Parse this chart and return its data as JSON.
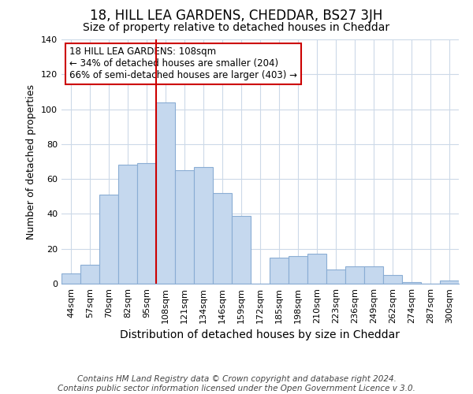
{
  "title": "18, HILL LEA GARDENS, CHEDDAR, BS27 3JH",
  "subtitle": "Size of property relative to detached houses in Cheddar",
  "xlabel": "Distribution of detached houses by size in Cheddar",
  "ylabel": "Number of detached properties",
  "bar_labels": [
    "44sqm",
    "57sqm",
    "70sqm",
    "82sqm",
    "95sqm",
    "108sqm",
    "121sqm",
    "134sqm",
    "146sqm",
    "159sqm",
    "172sqm",
    "185sqm",
    "198sqm",
    "210sqm",
    "223sqm",
    "236sqm",
    "249sqm",
    "262sqm",
    "274sqm",
    "287sqm",
    "300sqm"
  ],
  "bar_values": [
    6,
    11,
    51,
    68,
    69,
    104,
    65,
    67,
    52,
    39,
    0,
    15,
    16,
    17,
    8,
    10,
    10,
    5,
    1,
    0,
    2
  ],
  "bar_color": "#c5d8ee",
  "bar_edge_color": "#8aadd4",
  "highlight_index": 5,
  "highlight_line_color": "#cc0000",
  "ylim": [
    0,
    140
  ],
  "yticks": [
    0,
    20,
    40,
    60,
    80,
    100,
    120,
    140
  ],
  "annotation_title": "18 HILL LEA GARDENS: 108sqm",
  "annotation_line1": "← 34% of detached houses are smaller (204)",
  "annotation_line2": "66% of semi-detached houses are larger (403) →",
  "annotation_box_color": "#ffffff",
  "annotation_box_edge": "#cc0000",
  "footer_line1": "Contains HM Land Registry data © Crown copyright and database right 2024.",
  "footer_line2": "Contains public sector information licensed under the Open Government Licence v 3.0.",
  "background_color": "#ffffff",
  "grid_color": "#ccd9e8",
  "title_fontsize": 12,
  "subtitle_fontsize": 10,
  "xlabel_fontsize": 10,
  "ylabel_fontsize": 9,
  "tick_fontsize": 8,
  "footer_fontsize": 7.5
}
